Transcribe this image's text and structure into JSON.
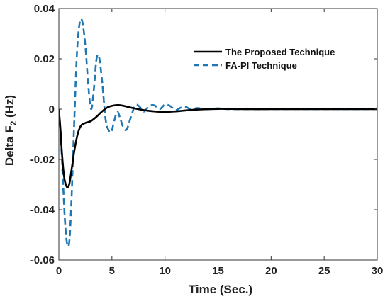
{
  "chart_data": {
    "type": "line",
    "title": "",
    "xlabel": "Time (Sec.)",
    "ylabel_main": "Delta F",
    "ylabel_sub": "2",
    "ylabel_unit": " (Hz)",
    "xlim": [
      0,
      30
    ],
    "ylim": [
      -0.06,
      0.04
    ],
    "xticks": [
      0,
      5,
      10,
      15,
      20,
      25,
      30
    ],
    "xtick_labels": [
      "0",
      "5",
      "10",
      "15",
      "20",
      "25",
      "30"
    ],
    "yticks": [
      -0.06,
      -0.04,
      -0.02,
      0,
      0.02,
      0.04
    ],
    "ytick_labels": [
      "-0.06",
      "-0.04",
      "-0.02",
      "0",
      "0.02",
      "0.04"
    ],
    "grid": false,
    "legend_position": "top-right",
    "series": [
      {
        "name": "The Proposed Technique",
        "color": "#000000",
        "style": "solid",
        "x": [
          0,
          0.15,
          0.3,
          0.5,
          0.7,
          0.85,
          1.0,
          1.2,
          1.5,
          1.8,
          2.1,
          2.5,
          3.0,
          3.5,
          4.0,
          4.5,
          5.0,
          5.5,
          6.0,
          6.5,
          7.0,
          8.0,
          9.0,
          10.0,
          11.0,
          12.0,
          13.0,
          15.0,
          18.0,
          20.0,
          25.0,
          30.0
        ],
        "y": [
          0,
          -0.008,
          -0.018,
          -0.027,
          -0.0305,
          -0.031,
          -0.0295,
          -0.024,
          -0.0155,
          -0.0095,
          -0.0065,
          -0.0055,
          -0.0048,
          -0.0032,
          -0.0012,
          0.0005,
          0.0013,
          0.0016,
          0.0014,
          0.0009,
          0.0004,
          -0.0004,
          -0.0009,
          -0.0011,
          -0.0009,
          -0.0005,
          -0.0002,
          0.0001,
          0.0,
          0.0,
          0.0,
          0.0
        ]
      },
      {
        "name": "FA-PI Technique",
        "color": "#1f77b4",
        "style": "dashed",
        "x": [
          0,
          0.2,
          0.4,
          0.6,
          0.8,
          1.0,
          1.2,
          1.45,
          1.7,
          1.95,
          2.2,
          2.5,
          2.8,
          3.05,
          3.3,
          3.55,
          3.8,
          4.1,
          4.4,
          4.7,
          4.95,
          5.2,
          5.5,
          5.8,
          6.1,
          6.4,
          6.8,
          7.2,
          7.6,
          8.0,
          8.5,
          9.0,
          9.5,
          10.0,
          10.5,
          11.0,
          11.5,
          12.0,
          12.5,
          13.0,
          14.0,
          15.0,
          16.0,
          18.0,
          20.0,
          25.0,
          30.0
        ],
        "y": [
          0,
          -0.012,
          -0.03,
          -0.046,
          -0.054,
          -0.052,
          -0.035,
          -0.005,
          0.022,
          0.034,
          0.035,
          0.025,
          0.008,
          0.0,
          0.008,
          0.02,
          0.0205,
          0.01,
          -0.004,
          -0.0085,
          -0.009,
          -0.005,
          -0.001,
          -0.004,
          -0.0075,
          -0.008,
          -0.003,
          0.0015,
          0.001,
          -0.001,
          0.0012,
          0.0015,
          0.0,
          0.0018,
          0.0012,
          -0.0004,
          0.0006,
          0.0008,
          -0.0003,
          0.0004,
          0.0,
          0.0003,
          0.0,
          0.0,
          0.0,
          0.0,
          0.0
        ]
      }
    ]
  }
}
